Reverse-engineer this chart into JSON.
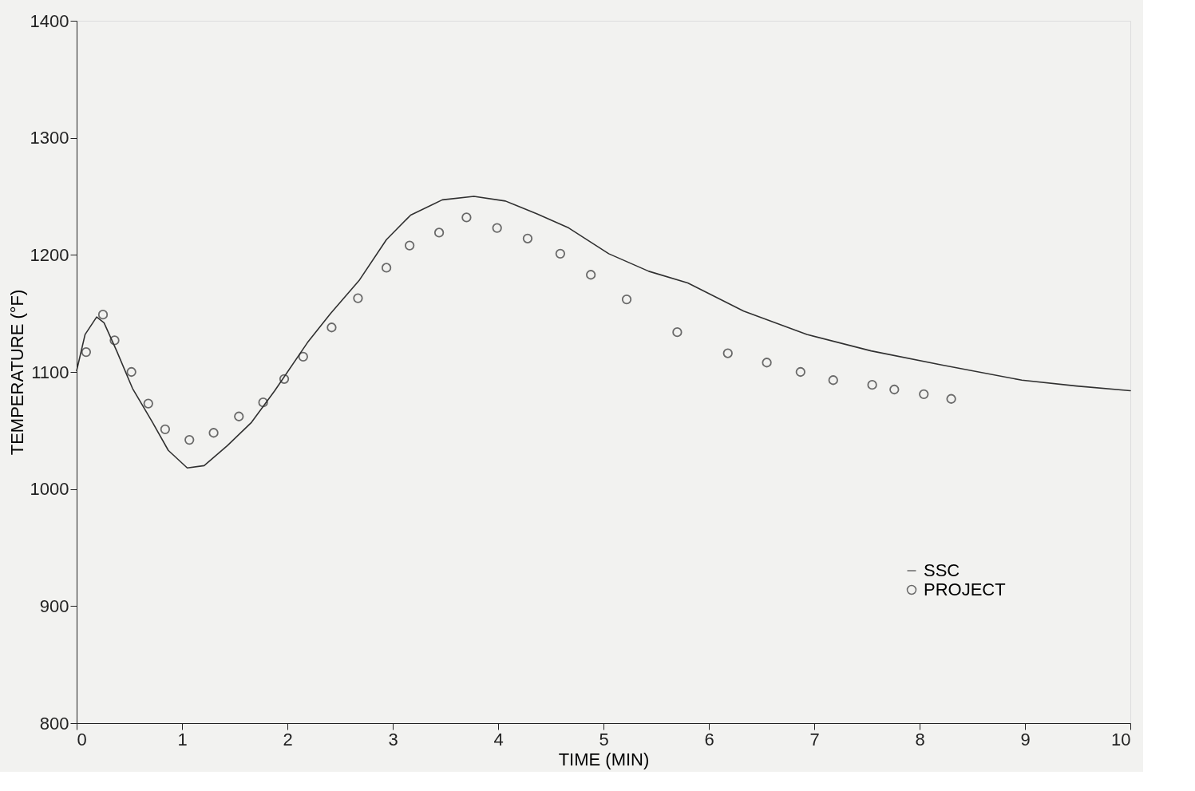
{
  "chart_data": {
    "type": "line",
    "xlabel": "TIME (MIN)",
    "ylabel": "TEMPERATURE (°F)",
    "xlim": [
      0,
      10
    ],
    "xticks": [
      0,
      1,
      2,
      3,
      4,
      5,
      6,
      7,
      8,
      9,
      10
    ],
    "ylim": [
      800,
      1400
    ],
    "yticks": [
      800,
      900,
      1000,
      1100,
      1200,
      1300,
      1400
    ],
    "grid": false,
    "legend": "bottom right",
    "series": [
      {
        "name": "SSC",
        "color": "#303030",
        "marker": "none",
        "line_style": "solid",
        "x": [
          0,
          0.08,
          0.19,
          0.26,
          0.38,
          0.53,
          0.72,
          0.87,
          1.05,
          1.21,
          1.43,
          1.66,
          1.88,
          2.19,
          2.41,
          2.68,
          2.94,
          3.17,
          3.47,
          3.77,
          4.07,
          4.37,
          4.67,
          5.05,
          5.43,
          5.8,
          6.33,
          6.93,
          7.54,
          8.21,
          8.97,
          9.49,
          10
        ],
        "values": [
          1101,
          1132,
          1147,
          1142,
          1118,
          1086,
          1057,
          1033,
          1018,
          1020,
          1037,
          1057,
          1084,
          1125,
          1150,
          1178,
          1213,
          1234,
          1247,
          1250,
          1246,
          1235,
          1223,
          1201,
          1186,
          1176,
          1152,
          1132,
          1118,
          1106,
          1093,
          1088,
          1084
        ]
      },
      {
        "name": "PROJECT",
        "type": "scatter",
        "color": "#303030",
        "marker": "circle",
        "x": [
          0.09,
          0.25,
          0.36,
          0.52,
          0.68,
          0.84,
          1.07,
          1.3,
          1.54,
          1.77,
          1.97,
          2.15,
          2.42,
          2.67,
          2.94,
          3.16,
          3.44,
          3.7,
          3.99,
          4.28,
          4.59,
          4.88,
          5.22,
          5.7,
          6.18,
          6.55,
          6.87,
          7.18,
          7.55,
          7.76,
          8.04,
          8.3
        ],
        "values": [
          1117,
          1149,
          1127,
          1100,
          1073,
          1051,
          1042,
          1048,
          1062,
          1074,
          1094,
          1113,
          1138,
          1163,
          1189,
          1208,
          1219,
          1232,
          1223,
          1214,
          1201,
          1183,
          1162,
          1134,
          1116,
          1108,
          1100,
          1093,
          1089,
          1085,
          1081,
          1077
        ]
      }
    ]
  }
}
